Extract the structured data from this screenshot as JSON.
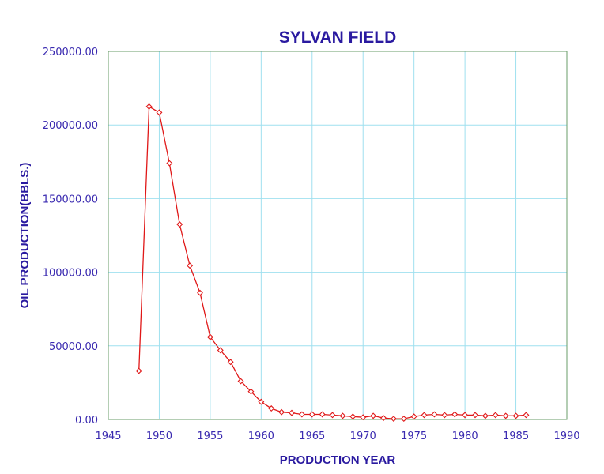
{
  "chart_data": {
    "type": "line",
    "title": "SYLVAN FIELD",
    "xlabel": "PRODUCTION YEAR",
    "ylabel": "OIL PRODUCTION(BBLS.)",
    "xlim": [
      1945,
      1990
    ],
    "ylim": [
      0,
      250000
    ],
    "x_ticks": [
      "1945",
      "1950",
      "1955",
      "1960",
      "1965",
      "1970",
      "1975",
      "1980",
      "1985",
      "1990"
    ],
    "y_ticks": [
      "0.00",
      "50000.00",
      "100000.00",
      "150000.00",
      "200000.00",
      "250000.00"
    ],
    "grid": true,
    "colors": {
      "series": "#e01818",
      "text": "#2a1aa0",
      "grid": "#9fe0ef"
    },
    "series": [
      {
        "x": [
          1948,
          1949,
          1950,
          1951,
          1952,
          1953,
          1954,
          1955,
          1956,
          1957,
          1958,
          1959,
          1960,
          1961,
          1962,
          1963,
          1964,
          1965,
          1966,
          1967,
          1968,
          1969,
          1970,
          1971,
          1972,
          1973,
          1974,
          1975,
          1976,
          1977,
          1978,
          1979,
          1980,
          1981,
          1982,
          1983,
          1984,
          1985,
          1986
        ],
        "values": [
          33000,
          212500,
          208500,
          174000,
          132500,
          104500,
          86000,
          56000,
          47000,
          39000,
          26000,
          19000,
          12000,
          7500,
          5000,
          4500,
          3500,
          3500,
          3500,
          3000,
          2500,
          2000,
          1500,
          2500,
          1000,
          500,
          500,
          2000,
          3000,
          3500,
          3000,
          3500,
          3000,
          3000,
          2500,
          3000,
          2500,
          2500,
          3000
        ]
      }
    ]
  }
}
